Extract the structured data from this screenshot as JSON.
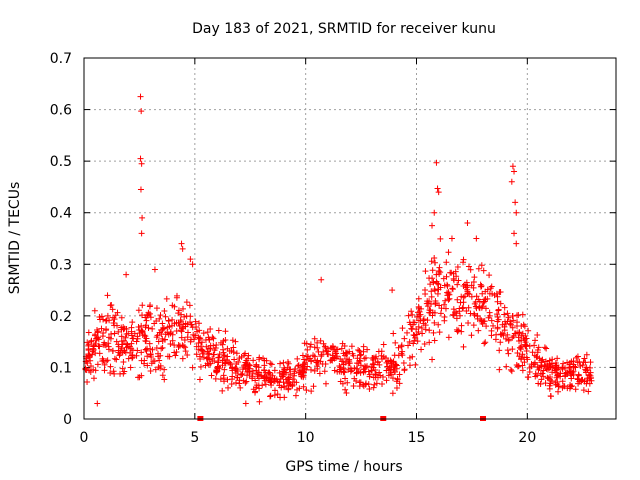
{
  "chart_data": {
    "type": "scatter",
    "title": "Day 183 of 2021, SRMTID for receiver kunu",
    "xlabel": "GPS time / hours",
    "ylabel": "SRMTID / TECUs",
    "xlim": [
      0,
      24
    ],
    "ylim": [
      0,
      0.7
    ],
    "xticks": [
      0,
      5,
      10,
      15,
      20
    ],
    "xtick_labels": [
      "0",
      "5",
      "10",
      "15",
      "20"
    ],
    "yticks": [
      0,
      0.1,
      0.2,
      0.3,
      0.4,
      0.5,
      0.6,
      0.7
    ],
    "ytick_labels": [
      "0",
      "0.1",
      "0.2",
      "0.3",
      "0.4",
      "0.5",
      "0.6",
      "0.7"
    ],
    "grid": true,
    "series_color": "#ff0000",
    "marker": "+",
    "data_gap_markers_x": [
      5.25,
      13.5,
      18.0
    ],
    "envelope_x": [
      0.0,
      0.5,
      1.0,
      1.5,
      2.0,
      2.5,
      3.0,
      3.5,
      4.0,
      4.5,
      5.0,
      5.5,
      6.0,
      6.5,
      7.0,
      7.5,
      8.0,
      8.5,
      9.0,
      9.5,
      10.0,
      10.5,
      11.0,
      11.5,
      12.0,
      12.5,
      13.0,
      13.5,
      14.0,
      14.5,
      15.0,
      15.5,
      16.0,
      16.5,
      17.0,
      17.5,
      18.0,
      18.5,
      19.0,
      19.5,
      20.0,
      20.5,
      21.0,
      21.5,
      22.0,
      22.5,
      22.9
    ],
    "envelope_mean": [
      0.11,
      0.14,
      0.16,
      0.15,
      0.14,
      0.16,
      0.16,
      0.15,
      0.18,
      0.18,
      0.15,
      0.13,
      0.12,
      0.11,
      0.1,
      0.09,
      0.08,
      0.08,
      0.08,
      0.08,
      0.1,
      0.12,
      0.13,
      0.11,
      0.1,
      0.1,
      0.1,
      0.1,
      0.11,
      0.13,
      0.18,
      0.22,
      0.24,
      0.23,
      0.22,
      0.23,
      0.22,
      0.2,
      0.17,
      0.15,
      0.13,
      0.11,
      0.09,
      0.09,
      0.09,
      0.09,
      0.09
    ],
    "envelope_spread": [
      0.04,
      0.05,
      0.05,
      0.05,
      0.05,
      0.06,
      0.06,
      0.06,
      0.06,
      0.06,
      0.05,
      0.04,
      0.04,
      0.04,
      0.03,
      0.03,
      0.03,
      0.03,
      0.03,
      0.03,
      0.04,
      0.04,
      0.04,
      0.04,
      0.04,
      0.03,
      0.03,
      0.03,
      0.04,
      0.05,
      0.06,
      0.07,
      0.07,
      0.07,
      0.07,
      0.06,
      0.06,
      0.06,
      0.06,
      0.05,
      0.04,
      0.04,
      0.03,
      0.03,
      0.03,
      0.03,
      0.03
    ],
    "outliers": [
      {
        "x": 2.55,
        "y": 0.625
      },
      {
        "x": 2.58,
        "y": 0.597
      },
      {
        "x": 2.55,
        "y": 0.505
      },
      {
        "x": 2.6,
        "y": 0.495
      },
      {
        "x": 2.57,
        "y": 0.445
      },
      {
        "x": 2.62,
        "y": 0.39
      },
      {
        "x": 2.6,
        "y": 0.36
      },
      {
        "x": 4.4,
        "y": 0.34
      },
      {
        "x": 4.45,
        "y": 0.33
      },
      {
        "x": 4.8,
        "y": 0.31
      },
      {
        "x": 4.9,
        "y": 0.3
      },
      {
        "x": 15.9,
        "y": 0.497
      },
      {
        "x": 15.95,
        "y": 0.447
      },
      {
        "x": 16.0,
        "y": 0.44
      },
      {
        "x": 15.8,
        "y": 0.4
      },
      {
        "x": 15.7,
        "y": 0.375
      },
      {
        "x": 16.6,
        "y": 0.35
      },
      {
        "x": 17.3,
        "y": 0.38
      },
      {
        "x": 17.7,
        "y": 0.35
      },
      {
        "x": 19.35,
        "y": 0.49
      },
      {
        "x": 19.4,
        "y": 0.48
      },
      {
        "x": 19.3,
        "y": 0.46
      },
      {
        "x": 19.45,
        "y": 0.42
      },
      {
        "x": 19.5,
        "y": 0.4
      },
      {
        "x": 19.4,
        "y": 0.36
      },
      {
        "x": 19.5,
        "y": 0.34
      },
      {
        "x": 10.7,
        "y": 0.27
      },
      {
        "x": 13.9,
        "y": 0.25
      },
      {
        "x": 1.9,
        "y": 0.28
      },
      {
        "x": 3.2,
        "y": 0.29
      },
      {
        "x": 0.6,
        "y": 0.03
      },
      {
        "x": 7.3,
        "y": 0.03
      }
    ]
  }
}
